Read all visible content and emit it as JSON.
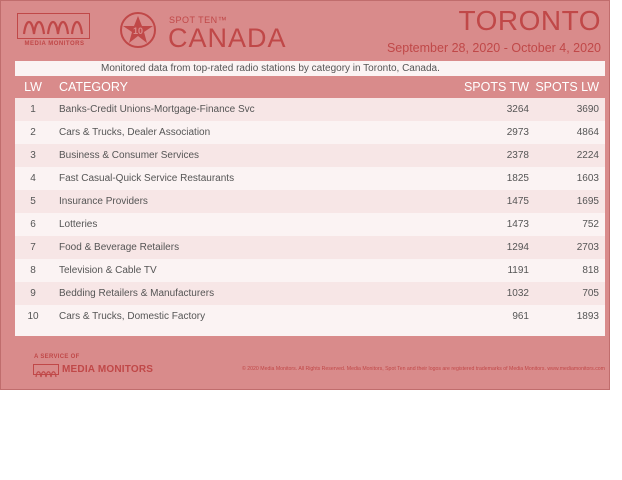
{
  "header": {
    "logo_text": "MEDIA MONITORS",
    "badge_number": "10",
    "spot_ten_label": "SPOT TEN™",
    "country": "CANADA",
    "city": "TORONTO",
    "date_range": "September 28, 2020 - October 4, 2020"
  },
  "table": {
    "subtitle": "Monitored data from top-rated radio stations by category in Toronto, Canada.",
    "columns": [
      "LW",
      "CATEGORY",
      "SPOTS TW",
      "SPOTS LW"
    ],
    "rows": [
      {
        "lw": "1",
        "category": "Banks-Credit Unions-Mortgage-Finance Svc",
        "spots_tw": "3264",
        "spots_lw": "3690"
      },
      {
        "lw": "2",
        "category": "Cars & Trucks, Dealer Association",
        "spots_tw": "2973",
        "spots_lw": "4864"
      },
      {
        "lw": "3",
        "category": "Business & Consumer Services",
        "spots_tw": "2378",
        "spots_lw": "2224"
      },
      {
        "lw": "4",
        "category": "Fast Casual-Quick Service Restaurants",
        "spots_tw": "1825",
        "spots_lw": "1603"
      },
      {
        "lw": "5",
        "category": "Insurance Providers",
        "spots_tw": "1475",
        "spots_lw": "1695"
      },
      {
        "lw": "6",
        "category": "Lotteries",
        "spots_tw": "1473",
        "spots_lw": "752"
      },
      {
        "lw": "7",
        "category": "Food & Beverage Retailers",
        "spots_tw": "1294",
        "spots_lw": "2703"
      },
      {
        "lw": "8",
        "category": "Television & Cable TV",
        "spots_tw": "1191",
        "spots_lw": "818"
      },
      {
        "lw": "9",
        "category": "Bedding Retailers & Manufacturers",
        "spots_tw": "1032",
        "spots_lw": "705"
      },
      {
        "lw": "10",
        "category": "Cars & Trucks, Domestic Factory",
        "spots_tw": "961",
        "spots_lw": "1893"
      }
    ]
  },
  "footer": {
    "service_label": "A SERVICE OF",
    "brand": "MEDIA MONITORS",
    "copyright": "© 2020 Media Monitors. All Rights Reserved. Media Monitors, Spot Ten and their logos are registered trademarks of Media Monitors. www.mediamonitors.com"
  },
  "colors": {
    "accent": "#c04848",
    "background": "#d98b8b",
    "row_light": "#fbf3f3",
    "row_alt": "#f7e6e6"
  }
}
